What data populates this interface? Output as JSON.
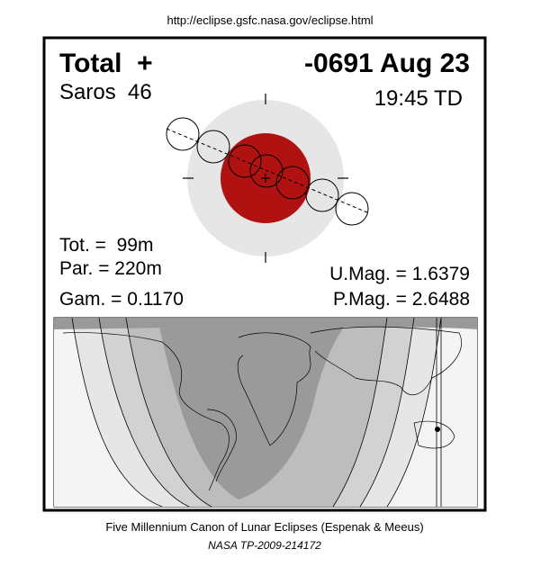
{
  "header": {
    "url": "http://eclipse.gsfc.nasa.gov/eclipse.html"
  },
  "eclipse": {
    "type": "Total  +",
    "date": "-0691 Aug 23",
    "saros": "Saros  46",
    "time": "19:45 TD",
    "total_duration": "Tot. =  99m",
    "partial_duration": "Par. = 220m",
    "gamma": "Gam. = 0.1170",
    "umbral_magnitude": "U.Mag. = 1.6379",
    "penumbral_magnitude": "P.Mag. = 2.6488"
  },
  "footer": {
    "title": "Five Millennium Canon of Lunar Eclipses (Espenak & Meeus)",
    "reference": "NASA TP-2009-214172"
  }
}
